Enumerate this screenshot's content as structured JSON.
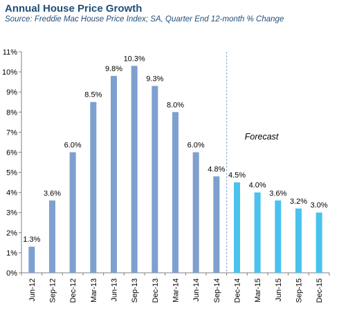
{
  "chart_data": {
    "type": "bar",
    "title": "Annual House Price Growth",
    "subtitle": "Source: Freddie Mac House Price Index; SA, Quarter End 12-month % Change",
    "categories": [
      "Jun-12",
      "Sep-12",
      "Dec-12",
      "Mar-13",
      "Jun-13",
      "Sep-13",
      "Dec-13",
      "Mar-14",
      "Jun-14",
      "Sep-14",
      "Dec-14",
      "Mar-15",
      "Jun-15",
      "Sep-15",
      "Dec-15"
    ],
    "series": [
      {
        "values": [
          1.3,
          3.6,
          6.0,
          8.5,
          9.8,
          10.3,
          9.3,
          8.0,
          6.0,
          4.8,
          4.5,
          4.0,
          3.6,
          3.2,
          3.0
        ]
      }
    ],
    "data_labels": [
      "1.3%",
      "3.6%",
      "6.0%",
      "8.5%",
      "9.8%",
      "10.3%",
      "9.3%",
      "8.0%",
      "6.0%",
      "4.8%",
      "4.5%",
      "4.0%",
      "3.6%",
      "3.2%",
      "3.0%"
    ],
    "ylim": [
      0,
      11
    ],
    "yticks": [
      0,
      1,
      2,
      3,
      4,
      5,
      6,
      7,
      8,
      9,
      10,
      11
    ],
    "ytick_labels": [
      "0%",
      "1%",
      "2%",
      "3%",
      "4%",
      "5%",
      "6%",
      "7%",
      "8%",
      "9%",
      "10%",
      "11%"
    ],
    "xlabel": "",
    "ylabel": "",
    "grid": false,
    "forecast_start_index": 10,
    "annotation": "Forecast",
    "colors": {
      "actual": "#7da0cf",
      "forecast": "#49c2ee",
      "divider": "#8aa5c4",
      "axis": "#7f7f7f"
    }
  }
}
